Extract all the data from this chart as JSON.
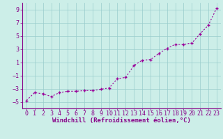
{
  "x": [
    0,
    1,
    2,
    3,
    4,
    5,
    6,
    7,
    8,
    9,
    10,
    11,
    12,
    13,
    14,
    15,
    16,
    17,
    18,
    19,
    20,
    21,
    22,
    23
  ],
  "y": [
    -4.8,
    -3.6,
    -3.8,
    -4.2,
    -3.6,
    -3.4,
    -3.4,
    -3.3,
    -3.3,
    -3.1,
    -2.9,
    -1.5,
    -1.3,
    0.5,
    1.3,
    1.4,
    2.3,
    3.1,
    3.7,
    3.7,
    3.9,
    5.3,
    6.6,
    9.2
  ],
  "line_color": "#990099",
  "marker": "+",
  "marker_size": 3.5,
  "marker_lw": 1.0,
  "bg_color": "#cceee8",
  "grid_color": "#99cccc",
  "xlabel": "Windchill (Refroidissement éolien,°C)",
  "xlim": [
    -0.5,
    23.5
  ],
  "ylim": [
    -6,
    10
  ],
  "yticks": [
    -5,
    -3,
    -1,
    1,
    3,
    5,
    7,
    9
  ],
  "xticks": [
    0,
    1,
    2,
    3,
    4,
    5,
    6,
    7,
    8,
    9,
    10,
    11,
    12,
    13,
    14,
    15,
    16,
    17,
    18,
    19,
    20,
    21,
    22,
    23
  ],
  "tick_color": "#880088",
  "label_color": "#880088",
  "xlabel_fontsize": 6.5,
  "tick_fontsize": 6.0,
  "line_width": 0.8,
  "spine_color": "#880088"
}
